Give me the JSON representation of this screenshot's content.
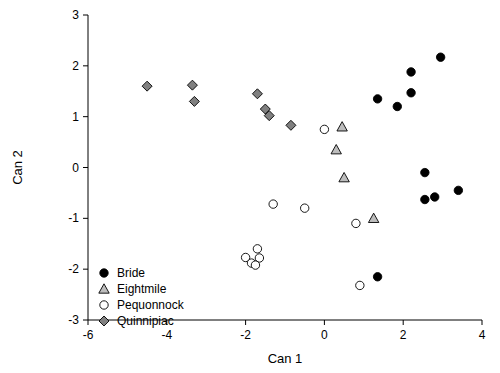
{
  "chart_data": {
    "type": "scatter",
    "x_label": "Can 1",
    "y_label": "Can 2",
    "xlim": [
      -6,
      4
    ],
    "ylim": [
      -3,
      3
    ],
    "xticks": [
      -6,
      -4,
      -2,
      0,
      2,
      4
    ],
    "yticks": [
      -3,
      -2,
      -1,
      0,
      1,
      2,
      3
    ],
    "legend": "bottom-left",
    "series": [
      {
        "name": "Bride",
        "color": "#000000",
        "marker": "circle",
        "x": [
          1.35,
          1.85,
          2.2,
          2.2,
          2.95,
          2.55,
          2.55,
          2.8,
          3.4,
          1.35
        ],
        "values": [
          1.35,
          1.2,
          1.88,
          1.47,
          2.17,
          -0.1,
          -0.63,
          -0.58,
          -0.45,
          -2.15
        ]
      },
      {
        "name": "Eightmile",
        "color": "#bdbdbd",
        "marker": "triangle",
        "x": [
          0.45,
          0.3,
          0.5,
          1.25
        ],
        "values": [
          0.8,
          0.35,
          -0.2,
          -1.0
        ]
      },
      {
        "name": "Pequonnock",
        "color": "#ffffff",
        "marker": "circle",
        "x": [
          0,
          -1.3,
          -0.5,
          0.8,
          0.9,
          -2.0,
          -1.85,
          -1.7,
          -1.65,
          -1.75
        ],
        "values": [
          0.75,
          -0.72,
          -0.8,
          -1.1,
          -2.32,
          -1.77,
          -1.88,
          -1.6,
          -1.78,
          -1.92
        ]
      },
      {
        "name": "Quinnipiac",
        "color": "#808080",
        "marker": "diamond",
        "x": [
          -4.5,
          -3.35,
          -3.3,
          -1.7,
          -1.5,
          -1.4,
          -0.85
        ],
        "values": [
          1.6,
          1.62,
          1.3,
          1.45,
          1.15,
          1.02,
          0.83
        ]
      }
    ]
  }
}
